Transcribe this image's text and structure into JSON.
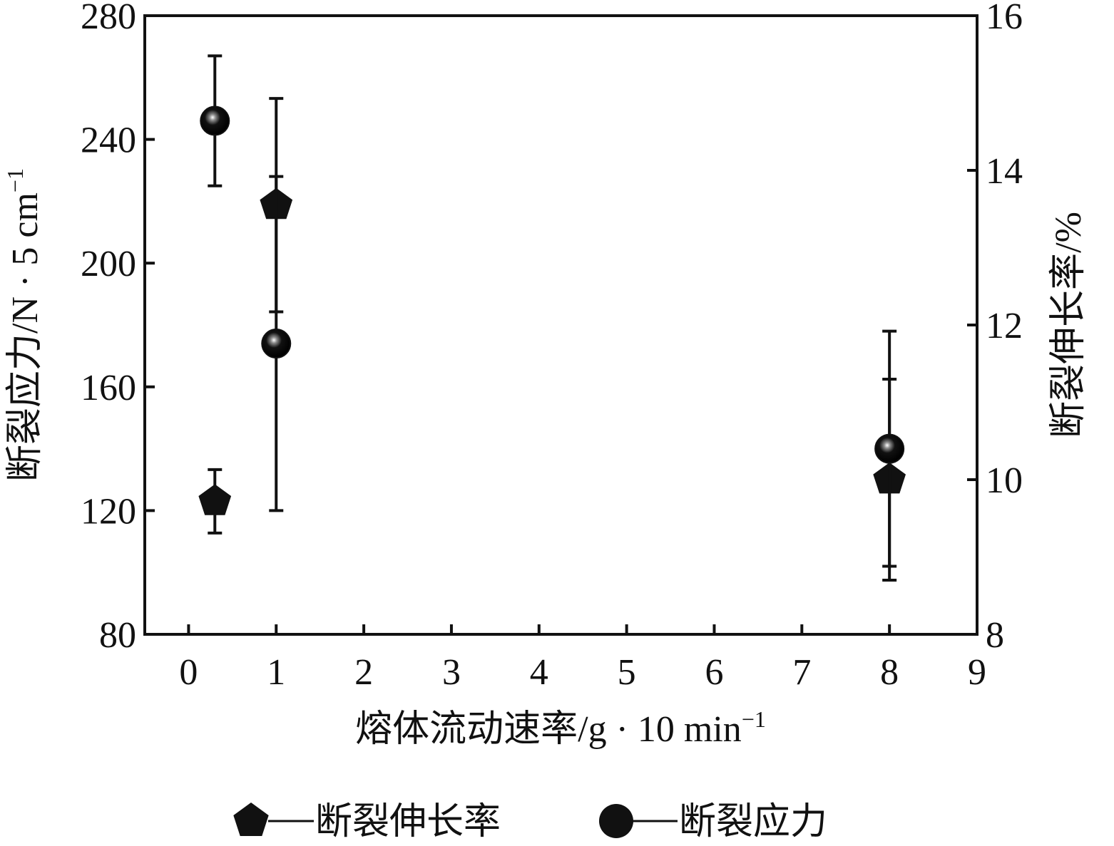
{
  "chart_data": {
    "type": "scatter",
    "xlabel": {
      "text": "熔体流动速率/g · 10 min",
      "sup": "−1"
    },
    "ylabel": {
      "text": "断裂应力/N · 5 cm",
      "sup": "−1"
    },
    "y2label": "断裂伸长率/%",
    "xlim": [
      -0.5,
      9
    ],
    "xticks": [
      0,
      1,
      2,
      3,
      4,
      5,
      6,
      7,
      8,
      9
    ],
    "ylim": [
      80,
      280
    ],
    "yticks": [
      80,
      120,
      160,
      200,
      240,
      280
    ],
    "y2lim": [
      8,
      16
    ],
    "y2ticks": [
      8,
      10,
      12,
      14,
      16
    ],
    "series": [
      {
        "name": "断裂伸长率",
        "marker": "pentagon",
        "color": "#111111",
        "axis": "y2",
        "x": [
          0.3,
          1,
          8
        ],
        "values": [
          9.72,
          13.55,
          10.0
        ],
        "errors": [
          0.41,
          1.38,
          1.3
        ]
      },
      {
        "name": "断裂应力",
        "marker": "circle",
        "color": "#111111",
        "x": [
          0.3,
          1,
          8
        ],
        "values": [
          246,
          174,
          140
        ],
        "errors": [
          21,
          54,
          38
        ]
      }
    ]
  }
}
